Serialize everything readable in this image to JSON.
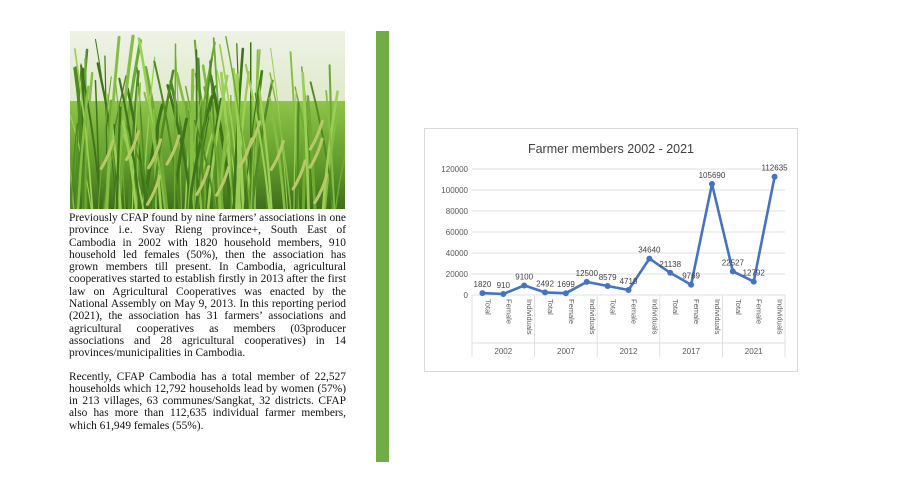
{
  "page": {
    "paragraph_1": "Previously CFAP found by nine farmers’ associations in one province i.e. Svay Rieng province+, South East of Cambodia in 2002 with 1820 household members, 910 household led females (50%), then the association has grown members till present. In Cambodia, agricultural cooperatives started to establish firstly in 2013 after the first law on Agricultural Cooperatives was enacted by the National Assembly on May 9, 2013. In this reporting period (2021), the association has 31 farmers’ associations and agricultural cooperatives as members (03producer associations and 28 agricultural cooperatives) in 14 provinces/municipalities in Cambodia.",
    "paragraph_2": "Recently, CFAP Cambodia has a total member of 22,527 households which 12,792 households lead by women (57%) in 213 villages, 63 communes/Sangkat, 32 districts. CFAP also has more than 112,635 individual farmer members, which 61,949 females (55%)."
  },
  "colors": {
    "accent_bar": "#70ad47",
    "series_line": "#4472c4"
  },
  "chart_data": {
    "type": "line",
    "title": "Farmer members 2002 - 2021",
    "ylim": [
      0,
      120000
    ],
    "y_ticks": [
      "0",
      "20000",
      "40000",
      "60000",
      "80000",
      "100000",
      "120000"
    ],
    "y_tick_values": [
      0,
      20000,
      40000,
      60000,
      80000,
      100000,
      120000
    ],
    "groups": [
      "2002",
      "2007",
      "2012",
      "2017",
      "2021"
    ],
    "subcategories": [
      "Total",
      "Female",
      "Individuals"
    ],
    "values": [
      1820,
      910,
      9100,
      2492,
      1699,
      12500,
      8579,
      4718,
      34640,
      21138,
      9769,
      105690,
      22527,
      12792,
      112635
    ],
    "data_labels": [
      "1820",
      "910",
      "9100",
      "2492",
      "1699",
      "12500",
      "8579",
      "4718",
      "34640",
      "21138",
      "9769",
      "105690",
      "22527",
      "12792",
      "112635"
    ],
    "grid": true,
    "legend": "none"
  }
}
